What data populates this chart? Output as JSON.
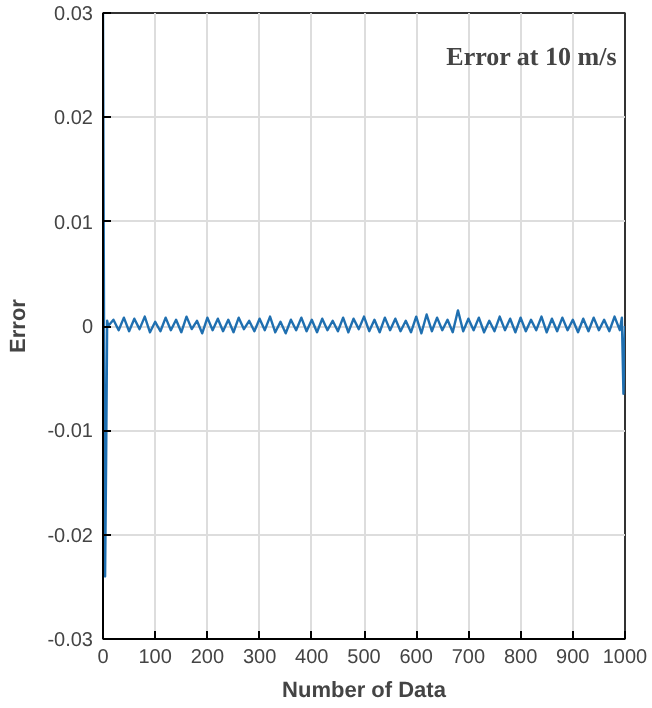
{
  "chart_data": {
    "type": "line",
    "xlabel": "Number of Data",
    "ylabel": "Error",
    "annotations": [
      "Error at 10 m/s"
    ],
    "xlim": [
      0,
      1000
    ],
    "ylim": [
      -0.03,
      0.03
    ],
    "xticks": [
      0,
      100,
      200,
      300,
      400,
      500,
      600,
      700,
      800,
      900,
      1000
    ],
    "yticks": [
      -0.03,
      -0.02,
      -0.01,
      0,
      0.01,
      0.02,
      0.03
    ],
    "grid": true,
    "series": [
      {
        "color": "#1f6fb0",
        "x": [
          0,
          2,
          4,
          6,
          8,
          10,
          20,
          30,
          40,
          50,
          60,
          70,
          80,
          90,
          100,
          110,
          120,
          130,
          140,
          150,
          160,
          170,
          180,
          190,
          200,
          210,
          220,
          230,
          240,
          250,
          260,
          270,
          280,
          290,
          300,
          310,
          320,
          330,
          340,
          350,
          360,
          370,
          380,
          390,
          400,
          410,
          420,
          430,
          440,
          450,
          460,
          470,
          480,
          490,
          500,
          510,
          520,
          530,
          540,
          550,
          560,
          570,
          580,
          590,
          600,
          610,
          620,
          630,
          640,
          650,
          660,
          670,
          680,
          690,
          700,
          710,
          720,
          730,
          740,
          750,
          760,
          770,
          780,
          790,
          800,
          810,
          820,
          830,
          840,
          850,
          860,
          870,
          880,
          890,
          900,
          910,
          920,
          930,
          940,
          950,
          960,
          970,
          980,
          990,
          994,
          997,
          1000
        ],
        "values": [
          0.03,
          0.0,
          -0.024,
          -0.013,
          0.0005,
          0.0,
          0.0006,
          -0.0004,
          0.0008,
          -0.0005,
          0.0007,
          -0.0003,
          0.0009,
          -0.0006,
          0.0004,
          -0.0005,
          0.0008,
          -0.0004,
          0.0006,
          -0.0006,
          0.0009,
          -0.0003,
          0.0005,
          -0.0007,
          0.0008,
          -0.0004,
          0.0007,
          -0.0005,
          0.0006,
          -0.0006,
          0.0008,
          -0.0003,
          0.0005,
          -0.0005,
          0.0007,
          -0.0004,
          0.0009,
          -0.0006,
          0.0004,
          -0.0007,
          0.0006,
          -0.0004,
          0.0008,
          -0.0005,
          0.0006,
          -0.0006,
          0.0007,
          -0.0004,
          0.0005,
          -0.0005,
          0.0008,
          -0.0006,
          0.0007,
          -0.0003,
          0.0009,
          -0.0005,
          0.0006,
          -0.0006,
          0.0008,
          -0.0004,
          0.0007,
          -0.0005,
          0.0005,
          -0.0006,
          0.0009,
          -0.0007,
          0.0011,
          -0.0005,
          0.0008,
          -0.0004,
          0.0006,
          -0.0006,
          0.0015,
          -0.0005,
          0.0007,
          -0.0004,
          0.0008,
          -0.0006,
          0.0005,
          -0.0005,
          0.0009,
          -0.0004,
          0.0007,
          -0.0006,
          0.0008,
          -0.0005,
          0.0006,
          -0.0004,
          0.0009,
          -0.0006,
          0.0007,
          -0.0005,
          0.0008,
          -0.0004,
          0.0006,
          -0.0006,
          0.0007,
          -0.0005,
          0.0008,
          -0.0004,
          0.0006,
          -0.0005,
          0.0009,
          -0.0004,
          0.0008,
          -0.0065,
          0.0
        ]
      }
    ]
  }
}
